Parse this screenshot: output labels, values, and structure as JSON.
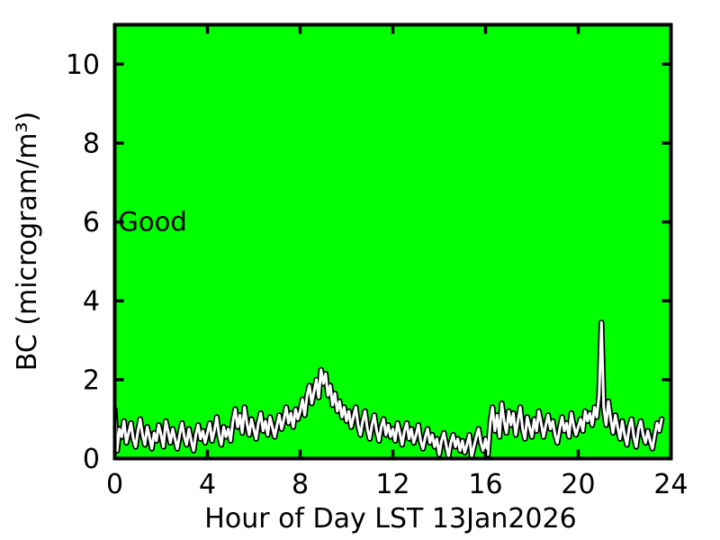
{
  "figure": {
    "plot_bg_color": "#00ff00",
    "axis_color": "#000000",
    "line_outline_color": "#000000",
    "line_color": "#ffffff",
    "text_color": "#000000"
  },
  "chart_data": {
    "type": "line",
    "title": "",
    "xlabel": "Hour of Day LST 13Jan2026",
    "ylabel": "BC (microgram/m³)",
    "xlim": [
      0,
      24
    ],
    "ylim": [
      0,
      11
    ],
    "xticks": [
      0,
      4,
      8,
      12,
      16,
      20,
      24
    ],
    "yticks": [
      0,
      2,
      4,
      6,
      8,
      10
    ],
    "grid": false,
    "legend_position": "none",
    "annotations": [
      {
        "text": "Good",
        "x": 0.15,
        "y": 6.0
      }
    ],
    "series": [
      {
        "name": "BC",
        "x_start": 0.0,
        "x_step": 0.1,
        "values": [
          1.25,
          0.2,
          0.75,
          0.55,
          0.95,
          0.4,
          0.65,
          0.9,
          0.5,
          0.3,
          0.7,
          1.0,
          0.6,
          0.35,
          0.8,
          0.55,
          0.25,
          0.65,
          0.45,
          0.85,
          0.6,
          0.3,
          0.95,
          0.7,
          0.4,
          0.75,
          0.5,
          0.25,
          0.6,
          0.9,
          0.55,
          0.35,
          0.75,
          0.45,
          0.2,
          0.6,
          0.85,
          0.5,
          0.7,
          0.4,
          0.65,
          0.9,
          0.45,
          0.7,
          1.05,
          0.6,
          0.35,
          0.8,
          0.55,
          0.75,
          0.45,
          0.95,
          1.25,
          0.8,
          1.1,
          0.65,
          1.3,
          0.9,
          0.6,
          1.0,
          0.75,
          0.5,
          0.9,
          1.15,
          0.7,
          0.95,
          0.6,
          1.05,
          0.8,
          0.55,
          0.85,
          1.1,
          0.75,
          1.0,
          1.3,
          0.9,
          1.15,
          0.8,
          1.25,
          1.0,
          1.2,
          1.5,
          1.1,
          1.6,
          1.85,
          1.4,
          1.7,
          2.0,
          1.55,
          2.25,
          1.9,
          2.15,
          1.6,
          1.85,
          1.35,
          1.65,
          1.2,
          1.45,
          1.05,
          1.3,
          0.95,
          1.2,
          0.8,
          1.05,
          1.3,
          0.85,
          0.6,
          0.95,
          1.2,
          0.75,
          0.5,
          0.85,
          1.1,
          0.7,
          0.45,
          0.8,
          1.0,
          0.6,
          0.85,
          0.55,
          0.75,
          0.45,
          0.9,
          0.65,
          0.35,
          0.7,
          0.9,
          0.5,
          0.75,
          0.4,
          0.6,
          0.85,
          0.45,
          0.25,
          0.55,
          0.75,
          0.4,
          0.6,
          0.3,
          0.5,
          0.1,
          0.45,
          0.65,
          0.35,
          0.05,
          0.4,
          0.6,
          0.3,
          0.5,
          0.2,
          0.45,
          0.15,
          0.35,
          0.6,
          0.05,
          0.3,
          0.55,
          0.75,
          0.4,
          0.2,
          0.5,
          0.1,
          0.9,
          1.3,
          0.7,
          1.1,
          0.55,
          1.4,
          0.95,
          0.65,
          1.2,
          0.85,
          1.15,
          0.6,
          0.95,
          1.3,
          0.75,
          0.5,
          1.05,
          0.8,
          0.55,
          1.0,
          0.7,
          1.2,
          0.9,
          0.55,
          0.85,
          1.1,
          0.75,
          0.95,
          0.6,
          0.4,
          0.75,
          1.05,
          0.7,
          0.9,
          0.55,
          1.15,
          0.85,
          0.6,
          0.8,
          1.0,
          0.7,
          1.2,
          0.95,
          1.15,
          0.85,
          1.3,
          1.05,
          1.6,
          3.45,
          1.3,
          0.85,
          1.45,
          1.0,
          0.65,
          1.1,
          0.8,
          0.5,
          0.95,
          0.6,
          0.35,
          0.8,
          1.0,
          0.55,
          0.3,
          0.75,
          0.95,
          0.6,
          0.4,
          0.7,
          0.45,
          0.25,
          0.6,
          0.9,
          0.7,
          1.0
        ]
      }
    ]
  }
}
